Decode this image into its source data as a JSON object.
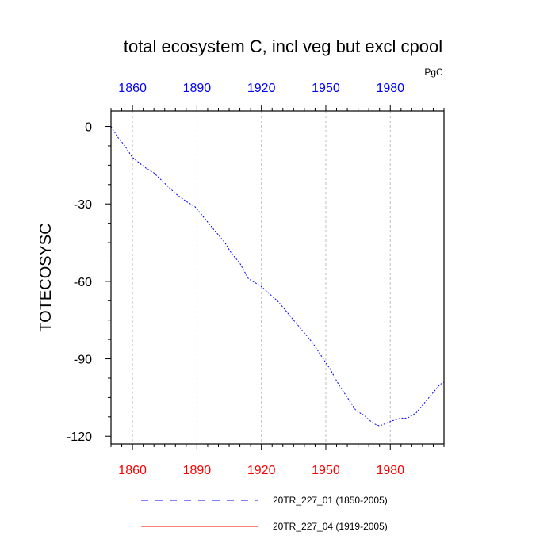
{
  "chart_data": {
    "type": "line",
    "title": "total ecosystem C, incl veg but excl cpool",
    "ylabel": "TOTECOSYSC",
    "units": "PgC",
    "xlim": [
      1850,
      2005
    ],
    "ylim": [
      -123,
      6
    ],
    "x_ticks": [
      1860,
      1890,
      1920,
      1950,
      1980
    ],
    "y_ticks": [
      0,
      -30,
      -60,
      -90,
      -120
    ],
    "bottom_tick_color": "#ff0000",
    "top_tick_color": "#0000ff",
    "grid": "vertical-dashed",
    "series": [
      {
        "name": "20TR_227_01 (1850-2005)",
        "color": "#0000ff",
        "style": "dashed",
        "x": [
          1850,
          1853,
          1856,
          1860,
          1863,
          1866,
          1870,
          1875,
          1880,
          1885,
          1889,
          1892,
          1896,
          1900,
          1903,
          1906,
          1910,
          1914,
          1918,
          1920,
          1924,
          1928,
          1932,
          1936,
          1940,
          1944,
          1948,
          1952,
          1956,
          1960,
          1964,
          1968,
          1972,
          1975,
          1978,
          1981,
          1985,
          1988,
          1992,
          1996,
          2000,
          2003,
          2005
        ],
        "values": [
          0,
          -4,
          -7,
          -12,
          -14,
          -16,
          -18,
          -22,
          -26,
          -29,
          -31,
          -34,
          -38,
          -42,
          -45,
          -49,
          -53,
          -59,
          -61,
          -62,
          -65,
          -68,
          -72,
          -76,
          -80,
          -84,
          -89,
          -94,
          -100,
          -105,
          -110,
          -112,
          -115,
          -116,
          -115,
          -114,
          -113,
          -113,
          -111,
          -107,
          -103,
          -100,
          -99
        ]
      },
      {
        "name": "20TR_227_04 (1919-2005)",
        "color": "#ff0000",
        "style": "solid",
        "x": [],
        "values": []
      }
    ]
  }
}
